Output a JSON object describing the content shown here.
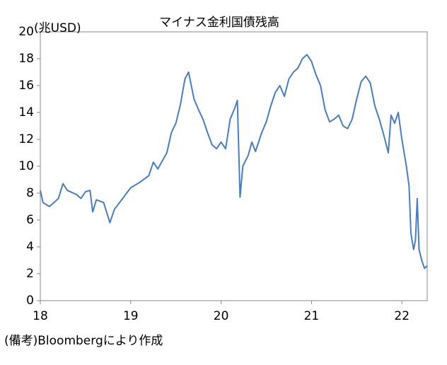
{
  "chart_data": {
    "type": "line",
    "title": "マイナス金利国債残高",
    "y_label": "(兆USD)",
    "source": "(備考)Bloombergにより作成",
    "color": "#4a7ebb",
    "x": [
      18.0,
      18.03,
      18.1,
      18.2,
      18.25,
      18.3,
      18.4,
      18.45,
      18.5,
      18.55,
      18.58,
      18.62,
      18.7,
      18.77,
      18.82,
      18.9,
      19.0,
      19.1,
      19.2,
      19.25,
      19.3,
      19.4,
      19.45,
      19.5,
      19.55,
      19.6,
      19.64,
      19.7,
      19.75,
      19.8,
      19.85,
      19.9,
      19.95,
      20.0,
      20.05,
      20.1,
      20.15,
      20.18,
      20.21,
      20.24,
      20.3,
      20.34,
      20.38,
      20.45,
      20.5,
      20.55,
      20.6,
      20.65,
      20.7,
      20.75,
      20.8,
      20.85,
      20.9,
      20.95,
      21.0,
      21.05,
      21.1,
      21.15,
      21.2,
      21.25,
      21.3,
      21.35,
      21.4,
      21.45,
      21.5,
      21.55,
      21.6,
      21.65,
      21.7,
      21.75,
      21.8,
      21.85,
      21.88,
      21.92,
      21.96,
      22.0,
      22.05,
      22.08,
      22.1,
      22.13,
      22.15,
      22.17,
      22.19,
      22.22,
      22.25,
      22.28
    ],
    "values": [
      8.2,
      7.3,
      7.0,
      7.6,
      8.7,
      8.2,
      7.9,
      7.6,
      8.1,
      8.2,
      6.6,
      7.5,
      7.3,
      5.8,
      6.8,
      7.5,
      8.4,
      8.8,
      9.3,
      10.3,
      9.8,
      11.0,
      12.5,
      13.2,
      14.6,
      16.5,
      17.0,
      15.0,
      14.2,
      13.5,
      12.5,
      11.6,
      11.3,
      11.8,
      11.3,
      13.5,
      14.3,
      14.9,
      7.7,
      10.0,
      10.8,
      11.8,
      11.1,
      12.5,
      13.3,
      14.5,
      15.5,
      16.0,
      15.2,
      16.5,
      17.0,
      17.3,
      18.0,
      18.3,
      17.8,
      16.8,
      16.0,
      14.2,
      13.3,
      13.5,
      13.8,
      13.0,
      12.8,
      13.5,
      15.0,
      16.3,
      16.7,
      16.2,
      14.5,
      13.5,
      12.3,
      11.0,
      13.8,
      13.2,
      14.0,
      12.0,
      10.0,
      8.5,
      5.0,
      3.8,
      4.5,
      7.6,
      3.8,
      3.0,
      2.4,
      2.6
    ],
    "xlim": [
      18,
      22.28
    ],
    "xticks": [
      18,
      19,
      20,
      21,
      22
    ],
    "ylim": [
      0,
      20
    ],
    "yticks": [
      0,
      2,
      4,
      6,
      8,
      10,
      12,
      14,
      16,
      18,
      20
    ]
  }
}
